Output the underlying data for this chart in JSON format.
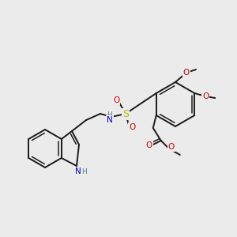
{
  "bg_color": "#ebebeb",
  "bond_color": "#1a1a1a",
  "atom_colors": {
    "N": "#0000cc",
    "O": "#cc0000",
    "S": "#b8b800",
    "H": "#4a8080",
    "C": "#1a1a1a"
  },
  "lw": 1.4,
  "lw_inner": 1.1
}
